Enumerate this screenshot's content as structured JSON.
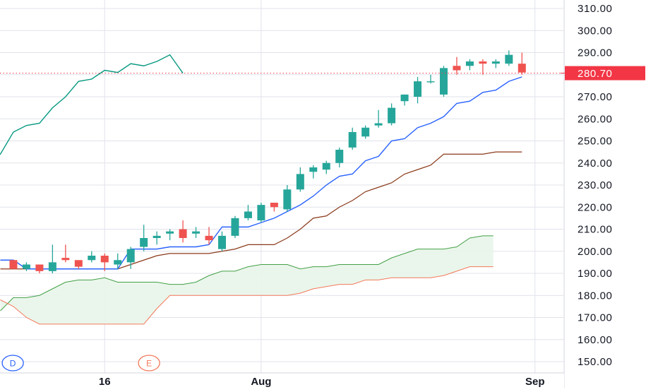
{
  "chart_data": {
    "type": "candlestick",
    "grid": true,
    "y_axis": {
      "side": "right",
      "min": 145,
      "max": 315,
      "ticks": [
        "150.00",
        "160.00",
        "170.00",
        "180.00",
        "190.00",
        "200.00",
        "210.00",
        "220.00",
        "230.00",
        "240.00",
        "250.00",
        "260.00",
        "270.00",
        "280.00",
        "290.00",
        "300.00",
        "310.00"
      ]
    },
    "x_axis": {
      "labels": [
        {
          "label": "16",
          "index": 8
        },
        {
          "label": "Aug",
          "index": 20
        },
        {
          "label": "Sep",
          "index": 41
        }
      ]
    },
    "last_price": "280.70",
    "last_price_value": 280.7,
    "colors": {
      "up": "#26a69a",
      "down": "#ef5350",
      "conversion_line": "#2962ff",
      "base_line": "#8b3a1a",
      "lagging_span": "#089981",
      "leading_span_a": "#43a047",
      "leading_span_b": "#f4795b",
      "cloud_fill": "#e8f5e9",
      "last_price": "#f23645",
      "grid": "#e0e3eb",
      "axis_text": "#131722"
    },
    "candles": [
      {
        "o": 196,
        "h": 196,
        "l": 192,
        "c": 192
      },
      {
        "o": 192,
        "h": 195,
        "l": 191,
        "c": 194
      },
      {
        "o": 194,
        "h": 194,
        "l": 190,
        "c": 191
      },
      {
        "o": 191,
        "h": 203,
        "l": 190,
        "c": 195
      },
      {
        "o": 197,
        "h": 203,
        "l": 195,
        "c": 196
      },
      {
        "o": 196,
        "h": 196,
        "l": 192,
        "c": 193
      },
      {
        "o": 196,
        "h": 200,
        "l": 195,
        "c": 198
      },
      {
        "o": 198,
        "h": 199,
        "l": 191,
        "c": 195
      },
      {
        "o": 194,
        "h": 199,
        "l": 192,
        "c": 196
      },
      {
        "o": 195,
        "h": 202,
        "l": 192,
        "c": 201
      },
      {
        "o": 202,
        "h": 212,
        "l": 200,
        "c": 206
      },
      {
        "o": 206,
        "h": 209,
        "l": 203,
        "c": 207
      },
      {
        "o": 208,
        "h": 210,
        "l": 205,
        "c": 209
      },
      {
        "o": 210,
        "h": 214,
        "l": 204,
        "c": 206
      },
      {
        "o": 208,
        "h": 211,
        "l": 206,
        "c": 209
      },
      {
        "o": 207,
        "h": 211,
        "l": 203,
        "c": 205
      },
      {
        "o": 201,
        "h": 209,
        "l": 200,
        "c": 207
      },
      {
        "o": 207,
        "h": 216,
        "l": 206,
        "c": 215
      },
      {
        "o": 215,
        "h": 221,
        "l": 214,
        "c": 218
      },
      {
        "o": 214,
        "h": 222,
        "l": 213,
        "c": 221
      },
      {
        "o": 222,
        "h": 222,
        "l": 218,
        "c": 220
      },
      {
        "o": 219,
        "h": 230,
        "l": 218,
        "c": 228
      },
      {
        "o": 228,
        "h": 238,
        "l": 227,
        "c": 235
      },
      {
        "o": 236,
        "h": 239,
        "l": 233,
        "c": 238
      },
      {
        "o": 237,
        "h": 241,
        "l": 235,
        "c": 240
      },
      {
        "o": 240,
        "h": 247,
        "l": 238,
        "c": 246
      },
      {
        "o": 247,
        "h": 256,
        "l": 246,
        "c": 254
      },
      {
        "o": 252,
        "h": 257,
        "l": 251,
        "c": 256
      },
      {
        "o": 257,
        "h": 264,
        "l": 256,
        "c": 258
      },
      {
        "o": 258,
        "h": 267,
        "l": 257,
        "c": 265
      },
      {
        "o": 268,
        "h": 271,
        "l": 266,
        "c": 271
      },
      {
        "o": 270,
        "h": 279,
        "l": 267,
        "c": 277
      },
      {
        "o": 277,
        "h": 280,
        "l": 276,
        "c": 277
      },
      {
        "o": 271,
        "h": 284,
        "l": 270,
        "c": 283
      },
      {
        "o": 284,
        "h": 288,
        "l": 280,
        "c": 282
      },
      {
        "o": 284,
        "h": 287,
        "l": 282,
        "c": 286
      },
      {
        "o": 286,
        "h": 287,
        "l": 280,
        "c": 285
      },
      {
        "o": 285,
        "h": 287,
        "l": 283,
        "c": 286
      },
      {
        "o": 285,
        "h": 291,
        "l": 284,
        "c": 289
      },
      {
        "o": 285,
        "h": 290,
        "l": 280,
        "c": 281
      }
    ],
    "conversion_line": [
      196,
      196,
      192,
      192,
      192,
      192,
      192,
      192,
      192,
      192,
      201,
      201,
      201,
      202,
      202,
      202,
      203,
      211,
      211,
      211,
      213,
      215,
      218,
      221,
      225,
      230,
      234,
      235,
      241,
      243,
      250,
      251,
      256,
      258,
      261,
      267,
      268,
      272,
      273,
      277,
      279
    ],
    "base_line": [
      192,
      192,
      192,
      192,
      192,
      192,
      192,
      192,
      192,
      192,
      194,
      196,
      198,
      199,
      199,
      199,
      199,
      200,
      201,
      203,
      203,
      203,
      206,
      210,
      215,
      216,
      220,
      223,
      227,
      229,
      231,
      235,
      237,
      239,
      244,
      244,
      244,
      244,
      245,
      245,
      245
    ],
    "lagging_span": [
      {
        "i": -1,
        "v": 240
      },
      {
        "i": 0,
        "v": 244
      },
      {
        "i": 1,
        "v": 254
      },
      {
        "i": 2,
        "v": 257
      },
      {
        "i": 3,
        "v": 258
      },
      {
        "i": 4,
        "v": 265
      },
      {
        "i": 5,
        "v": 270
      },
      {
        "i": 6,
        "v": 277
      },
      {
        "i": 7,
        "v": 278
      },
      {
        "i": 8,
        "v": 282
      },
      {
        "i": 9,
        "v": 281
      },
      {
        "i": 10,
        "v": 285
      },
      {
        "i": 11,
        "v": 284
      },
      {
        "i": 12,
        "v": 286
      },
      {
        "i": 13,
        "v": 289
      },
      {
        "i": 14,
        "v": 280.7
      }
    ],
    "leading_span_a": [
      {
        "i": 0,
        "v": 173
      },
      {
        "i": 1,
        "v": 179
      },
      {
        "i": 2,
        "v": 179
      },
      {
        "i": 3,
        "v": 180
      },
      {
        "i": 4,
        "v": 183
      },
      {
        "i": 5,
        "v": 186
      },
      {
        "i": 6,
        "v": 187
      },
      {
        "i": 7,
        "v": 187
      },
      {
        "i": 8,
        "v": 188
      },
      {
        "i": 9,
        "v": 186
      },
      {
        "i": 10,
        "v": 186
      },
      {
        "i": 11,
        "v": 186
      },
      {
        "i": 12,
        "v": 186
      },
      {
        "i": 13,
        "v": 185
      },
      {
        "i": 14,
        "v": 185
      },
      {
        "i": 15,
        "v": 186
      },
      {
        "i": 16,
        "v": 189
      },
      {
        "i": 17,
        "v": 191
      },
      {
        "i": 18,
        "v": 191
      },
      {
        "i": 19,
        "v": 193
      },
      {
        "i": 20,
        "v": 194
      },
      {
        "i": 21,
        "v": 194
      },
      {
        "i": 22,
        "v": 194
      },
      {
        "i": 23,
        "v": 192
      },
      {
        "i": 24,
        "v": 193
      },
      {
        "i": 25,
        "v": 193
      },
      {
        "i": 26,
        "v": 194
      },
      {
        "i": 27,
        "v": 194
      },
      {
        "i": 28,
        "v": 194
      },
      {
        "i": 29,
        "v": 194
      },
      {
        "i": 30,
        "v": 197
      },
      {
        "i": 31,
        "v": 199
      },
      {
        "i": 32,
        "v": 201
      },
      {
        "i": 33,
        "v": 201
      },
      {
        "i": 34,
        "v": 201
      },
      {
        "i": 35,
        "v": 202
      },
      {
        "i": 36,
        "v": 206
      },
      {
        "i": 37,
        "v": 207
      },
      {
        "i": 37.8,
        "v": 207
      }
    ],
    "leading_span_b": [
      {
        "i": 0,
        "v": 178
      },
      {
        "i": 1,
        "v": 175
      },
      {
        "i": 2,
        "v": 170
      },
      {
        "i": 3,
        "v": 167
      },
      {
        "i": 4,
        "v": 167
      },
      {
        "i": 5,
        "v": 167
      },
      {
        "i": 6,
        "v": 167
      },
      {
        "i": 7,
        "v": 167
      },
      {
        "i": 8,
        "v": 167
      },
      {
        "i": 9,
        "v": 167
      },
      {
        "i": 10,
        "v": 167
      },
      {
        "i": 11,
        "v": 167
      },
      {
        "i": 12,
        "v": 174
      },
      {
        "i": 13,
        "v": 180
      },
      {
        "i": 14,
        "v": 180
      },
      {
        "i": 15,
        "v": 180
      },
      {
        "i": 16,
        "v": 180
      },
      {
        "i": 17,
        "v": 180
      },
      {
        "i": 18,
        "v": 180
      },
      {
        "i": 19,
        "v": 180
      },
      {
        "i": 20,
        "v": 180
      },
      {
        "i": 21,
        "v": 180
      },
      {
        "i": 22,
        "v": 180
      },
      {
        "i": 23,
        "v": 181
      },
      {
        "i": 24,
        "v": 183
      },
      {
        "i": 25,
        "v": 184
      },
      {
        "i": 26,
        "v": 185
      },
      {
        "i": 27,
        "v": 185
      },
      {
        "i": 28,
        "v": 187
      },
      {
        "i": 29,
        "v": 187
      },
      {
        "i": 30,
        "v": 188
      },
      {
        "i": 31,
        "v": 188
      },
      {
        "i": 32,
        "v": 188
      },
      {
        "i": 33,
        "v": 188
      },
      {
        "i": 34,
        "v": 189
      },
      {
        "i": 35,
        "v": 191
      },
      {
        "i": 36,
        "v": 193
      },
      {
        "i": 37,
        "v": 193
      },
      {
        "i": 37.8,
        "v": 193
      }
    ],
    "markers": [
      {
        "letter": "D",
        "color": "#2962ff",
        "index": 0.25
      },
      {
        "letter": "E",
        "color": "#f4795b",
        "index": 10.7
      }
    ]
  }
}
